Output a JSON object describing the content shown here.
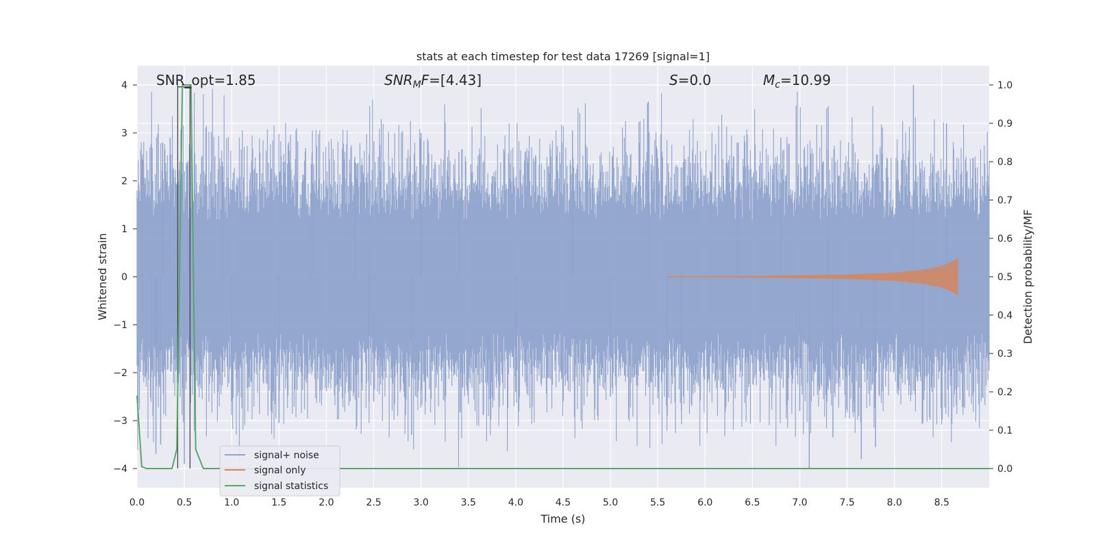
{
  "chart_data": {
    "type": "line",
    "title": "stats at each timestep for test data 17269 [signal=1]",
    "xlabel": "Time (s)",
    "ylabel": "Whitened strain",
    "ylabel_right": "Detection probability/MF",
    "xlim": [
      0.0,
      9.0
    ],
    "ylim": [
      -4.4,
      4.4
    ],
    "ylim_right": [
      -0.05,
      1.05
    ],
    "x_ticks": [
      "0.0",
      "0.5",
      "1.0",
      "1.5",
      "2.0",
      "2.5",
      "3.0",
      "3.5",
      "4.0",
      "4.5",
      "5.0",
      "5.5",
      "6.0",
      "6.5",
      "7.0",
      "7.5",
      "8.0",
      "8.5"
    ],
    "y_ticks": [
      "4",
      "3",
      "2",
      "1",
      "0",
      "−1",
      "−2",
      "−3",
      "−4"
    ],
    "y_ticks_right": [
      "1.0",
      "0.9",
      "0.8",
      "0.7",
      "0.6",
      "0.5",
      "0.4",
      "0.3",
      "0.2",
      "0.1",
      "0.0"
    ],
    "grid": true,
    "legend_position": "lower-left",
    "annotations": {
      "snr_opt": "SNR_opt=1.85",
      "snr_mf_var": "SNR",
      "snr_mf_sub": "M",
      "snr_mf_var2": "F",
      "snr_mf_val": "=[4.43]",
      "s_var": "S",
      "s_val": "=0.0",
      "mc_var": "M",
      "mc_sub": "c",
      "mc_val": "=10.99"
    },
    "vertical_lines_x": [
      0.43,
      0.56
    ],
    "series": [
      {
        "name": "signal+ noise",
        "color": "#8fa3cc",
        "axis": "left",
        "description_values": "whitened noise, approx ±1.6 dense band with spikes",
        "spikes": [
          [
            0.05,
            2.45
          ],
          [
            0.15,
            -2.1
          ],
          [
            0.27,
            2.8
          ],
          [
            0.2,
            -3.7
          ],
          [
            0.25,
            -3.5
          ],
          [
            0.35,
            2.9
          ],
          [
            0.5,
            -3.9
          ],
          [
            0.9,
            2.4
          ],
          [
            1.0,
            -2.6
          ],
          [
            1.5,
            -3.05
          ],
          [
            1.85,
            2.6
          ],
          [
            2.3,
            2.5
          ],
          [
            2.45,
            -2.6
          ],
          [
            2.5,
            -2.6
          ],
          [
            2.9,
            -3.3
          ],
          [
            3.0,
            3.0
          ],
          [
            3.4,
            2.6
          ],
          [
            4.0,
            -2.4
          ],
          [
            4.6,
            3.05
          ],
          [
            5.0,
            -2.5
          ],
          [
            5.4,
            3.65
          ],
          [
            5.6,
            -2.9
          ],
          [
            5.75,
            -2.8
          ],
          [
            6.35,
            2.8
          ],
          [
            6.8,
            2.9
          ],
          [
            7.0,
            -2.8
          ],
          [
            7.1,
            -4.0
          ],
          [
            7.3,
            3.55
          ],
          [
            7.35,
            -3.35
          ],
          [
            7.65,
            -3.8
          ],
          [
            7.8,
            -3.55
          ],
          [
            8.2,
            4.0
          ],
          [
            8.3,
            -3.05
          ],
          [
            8.55,
            3.2
          ]
        ]
      },
      {
        "name": "signal only",
        "color": "#dd8452",
        "axis": "left",
        "x": [
          5.6,
          6.5,
          7.5,
          8.0,
          8.3,
          8.5,
          8.6,
          8.67
        ],
        "y_envelope": [
          0.0,
          0.01,
          0.04,
          0.08,
          0.14,
          0.22,
          0.3,
          0.38
        ]
      },
      {
        "name": "signal statistics",
        "color": "#55a868",
        "axis": "right",
        "x": [
          0.0,
          0.05,
          0.1,
          0.2,
          0.3,
          0.37,
          0.42,
          0.48,
          0.57,
          0.62,
          0.7,
          1.0,
          3.0,
          6.0,
          9.0
        ],
        "y": [
          0.19,
          0.005,
          0.0,
          0.0,
          0.0,
          0.0,
          0.05,
          1.0,
          1.0,
          0.05,
          0.0,
          0.0,
          0.0,
          0.0,
          0.0
        ]
      }
    ]
  }
}
